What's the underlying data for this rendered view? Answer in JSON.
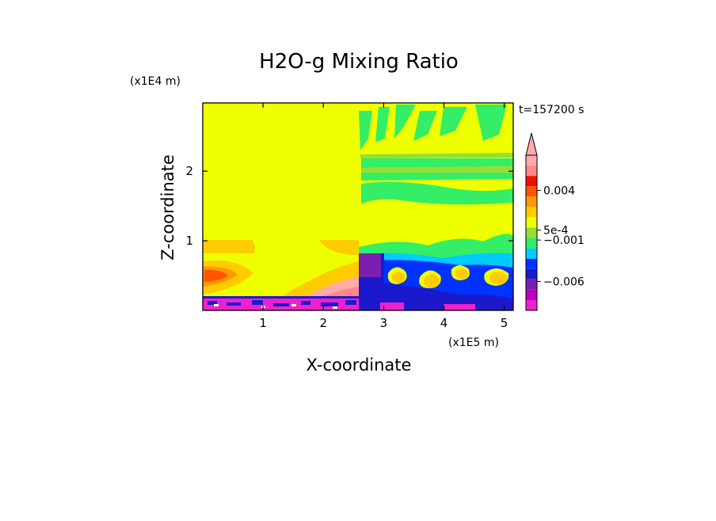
{
  "chart_data": {
    "type": "heatmap",
    "title": "H2O-g Mixing Ratio",
    "time_label": "t=157200 s",
    "xlabel": "X-coordinate",
    "ylabel": "Z-coordinate",
    "x_unit": "(x1E5 m)",
    "z_unit": "(x1E4 m)",
    "xlim": [
      0,
      5.15
    ],
    "ylim": [
      0,
      2.98
    ],
    "x_ticks": [
      1,
      2,
      3,
      4,
      5
    ],
    "x_tick_labels": [
      "1",
      "2",
      "3",
      "4",
      "5"
    ],
    "y_ticks": [
      1,
      2
    ],
    "y_tick_labels": [
      "1",
      "2"
    ],
    "colorbar": {
      "colors": [
        "#ee22cc",
        "#bb00bb",
        "#7a1fb0",
        "#1a1acc",
        "#0033ff",
        "#00ccff",
        "#33ee66",
        "#99dd33",
        "#eeff00",
        "#ffcc00",
        "#ff9900",
        "#ff5500",
        "#ee1100",
        "#ff8888",
        "#ffaaaa"
      ],
      "extend": "max",
      "tick_labels": [
        {
          "label": "0.004",
          "level": 11.6
        },
        {
          "label": "5e-4",
          "level": 7.75
        },
        {
          "label": "−0.001",
          "level": 6.8
        },
        {
          "label": "−0.006",
          "level": 2.8
        }
      ]
    }
  }
}
